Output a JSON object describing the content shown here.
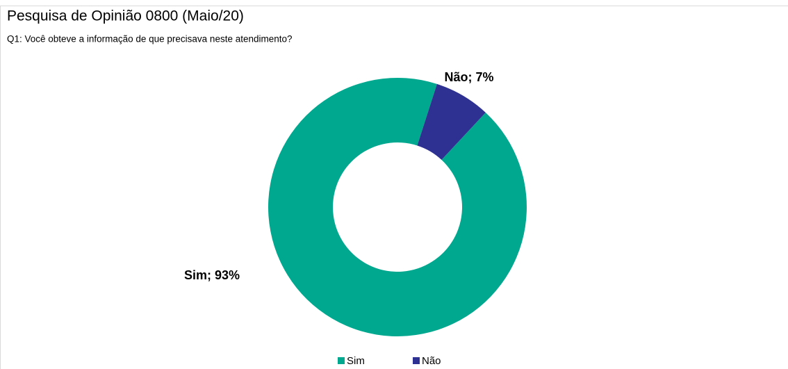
{
  "chart_data": {
    "type": "donut",
    "title": "Pesquisa de Opinião 0800 (Maio/20)",
    "subtitle": "Q1: Você obteve a informação de que precisava neste atendimento?",
    "categories": [
      "Sim",
      "Não"
    ],
    "values": [
      93,
      7
    ],
    "value_labels": [
      "Sim; 93%",
      "Não; 7%"
    ],
    "colors": [
      "#00a88f",
      "#2e3192"
    ],
    "legend": "bottom"
  }
}
